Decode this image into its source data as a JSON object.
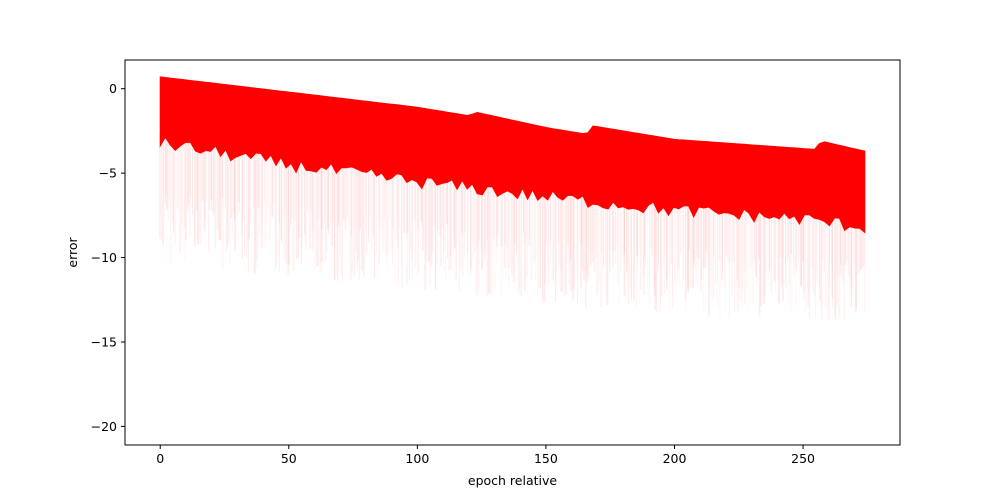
{
  "chart_data": {
    "type": "scatter",
    "title": "",
    "xlabel": "epoch relative",
    "ylabel": "error",
    "xlim": [
      -13.7,
      287.7
    ],
    "ylim": [
      -21.1,
      1.7
    ],
    "xticks": [
      0,
      50,
      100,
      150,
      200,
      250
    ],
    "yticks": [
      0,
      -5,
      -10,
      -15,
      -20
    ],
    "grid": false,
    "legend": "none",
    "color": "#ff0000",
    "x_range": [
      0,
      274
    ],
    "upper_envelope": {
      "x": [
        0,
        50,
        100,
        120,
        123,
        150,
        166,
        168,
        200,
        255,
        257,
        274
      ],
      "y": [
        0.7,
        -0.2,
        -1.1,
        -1.6,
        -1.4,
        -2.3,
        -2.7,
        -2.2,
        -3.0,
        -3.6,
        -3.1,
        -3.7
      ]
    },
    "solid_lower_bound": {
      "x": [
        0,
        50,
        100,
        150,
        200,
        250,
        274
      ],
      "y": [
        -3.2,
        -4.5,
        -5.5,
        -6.4,
        -7.2,
        -7.7,
        -8.2
      ]
    },
    "sparse_lower_bound": {
      "x": [
        0,
        50,
        100,
        150,
        200,
        250,
        274
      ],
      "y": [
        -10.5,
        -11.2,
        -12.0,
        -12.8,
        -13.5,
        -13.8,
        -14.0
      ]
    }
  }
}
